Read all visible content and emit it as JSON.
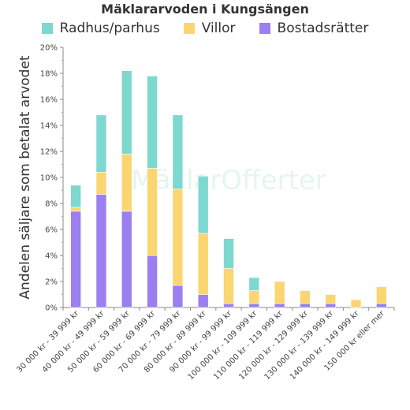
{
  "chart_data": {
    "type": "bar",
    "stacked": true,
    "title": "Mäklararvoden i Kungsängen",
    "ylabel": "Andelen säljare som betalat arvodet",
    "xlabel": "",
    "ylim": [
      0,
      20
    ],
    "y_unit": "%",
    "y_ticks": [
      "0%",
      "2%",
      "4%",
      "6%",
      "8%",
      "10%",
      "12%",
      "14%",
      "16%",
      "18%",
      "20%"
    ],
    "grid": false,
    "legend_position": "top",
    "watermark": "MäklarOfferter",
    "categories": [
      "30 000 kr - 39 999 kr",
      "40 000 kr - 49 999 kr",
      "50 000 kr - 59 999 kr",
      "60 000 kr - 69 999 kr",
      "70 000 kr - 79 999 kr",
      "80 000 kr - 89 999 kr",
      "90 000 kr - 99 999 kr",
      "100 000 kr - 109 999 kr",
      "110 000 kr - 119 999 kr",
      "120 000 kr - 129 999 kr",
      "130 000 kr - 139 999 kr",
      "140 000 kr - 149 999 kr",
      "150 000 kr eller mer"
    ],
    "series": [
      {
        "name": "Bostadsrätter",
        "color": "#9b7ff0",
        "values": [
          7.4,
          8.7,
          7.4,
          4.0,
          1.7,
          1.0,
          0.3,
          0.3,
          0.3,
          0.3,
          0.3,
          0.0,
          0.3
        ]
      },
      {
        "name": "Villor",
        "color": "#fbd570",
        "values": [
          0.3,
          1.7,
          4.4,
          6.7,
          7.4,
          4.7,
          2.7,
          1.0,
          1.7,
          1.0,
          0.7,
          0.6,
          1.3
        ]
      },
      {
        "name": "Radhus/parhus",
        "color": "#7dd8cf",
        "values": [
          1.7,
          4.4,
          6.4,
          7.1,
          5.7,
          4.4,
          2.3,
          1.0,
          0.0,
          0.0,
          0.0,
          0.0,
          0.0
        ]
      }
    ],
    "legend_order": [
      "Radhus/parhus",
      "Villor",
      "Bostadsrätter"
    ]
  }
}
